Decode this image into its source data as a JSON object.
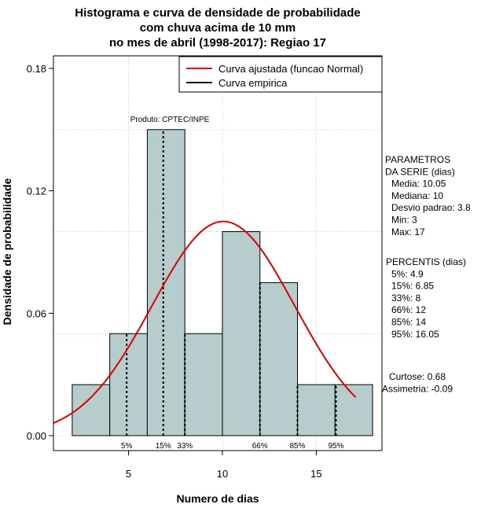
{
  "chart_data": {
    "type": "histogram",
    "title_lines": [
      "Histograma e curva de densidade de probabilidade",
      "com chuva acima de 10 mm",
      "no mes de abril (1998-2017): Regiao 17"
    ],
    "xlabel": "Numero de dias",
    "ylabel": "Densidade de probabilidade",
    "xlim": [
      1,
      18.5
    ],
    "ylim": [
      0,
      0.18
    ],
    "x_ticks": [
      5,
      10,
      15
    ],
    "y_ticks": [
      "0.00",
      "0.06",
      "0.12",
      "0.18"
    ],
    "grid": true,
    "bins": [
      {
        "start": 2,
        "end": 4,
        "density": 0.025
      },
      {
        "start": 4,
        "end": 6,
        "density": 0.05
      },
      {
        "start": 6,
        "end": 8,
        "density": 0.15
      },
      {
        "start": 8,
        "end": 10,
        "density": 0.05
      },
      {
        "start": 10,
        "end": 12,
        "density": 0.1
      },
      {
        "start": 12,
        "end": 14,
        "density": 0.075
      },
      {
        "start": 14,
        "end": 16,
        "density": 0.025
      },
      {
        "start": 16,
        "end": 18,
        "density": 0.025
      }
    ],
    "bar_color": "#b7cccc",
    "normal_curve": {
      "mean": 10.05,
      "sd": 3.8,
      "x_from": 1,
      "x_to": 17.1,
      "color": "#dd0000"
    },
    "percentile_lines": [
      {
        "label": "5%",
        "x": 4.9
      },
      {
        "label": "15%",
        "x": 6.85
      },
      {
        "label": "33%",
        "x": 8
      },
      {
        "label": "66%",
        "x": 12
      },
      {
        "label": "85%",
        "x": 14
      },
      {
        "label": "95%",
        "x": 16.05
      }
    ],
    "legend": {
      "position": "top-right",
      "entries": [
        {
          "label": "Curva ajustada (funcao Normal)",
          "color": "#dd0000"
        },
        {
          "label": "Curva empirica",
          "color": "#000000"
        }
      ]
    },
    "annotation": "Produto: CPTEC/INPE"
  },
  "side_panel": {
    "params_lines": [
      "PARAMETROS",
      "DA SERIE (dias)",
      "Media: 10.05",
      "Mediana: 10",
      "Desvio padrao: 3.8",
      "Min: 3",
      "Max: 17"
    ],
    "percentis_lines": [
      "PERCENTIS (dias)",
      "5%: 4.9",
      "15%: 6.85",
      "33%: 8",
      "66%: 12",
      "85%: 14",
      "95%: 16.05"
    ],
    "stats_lines": [
      "Curtose: 0.68",
      "Assimetria: -0.09"
    ]
  }
}
